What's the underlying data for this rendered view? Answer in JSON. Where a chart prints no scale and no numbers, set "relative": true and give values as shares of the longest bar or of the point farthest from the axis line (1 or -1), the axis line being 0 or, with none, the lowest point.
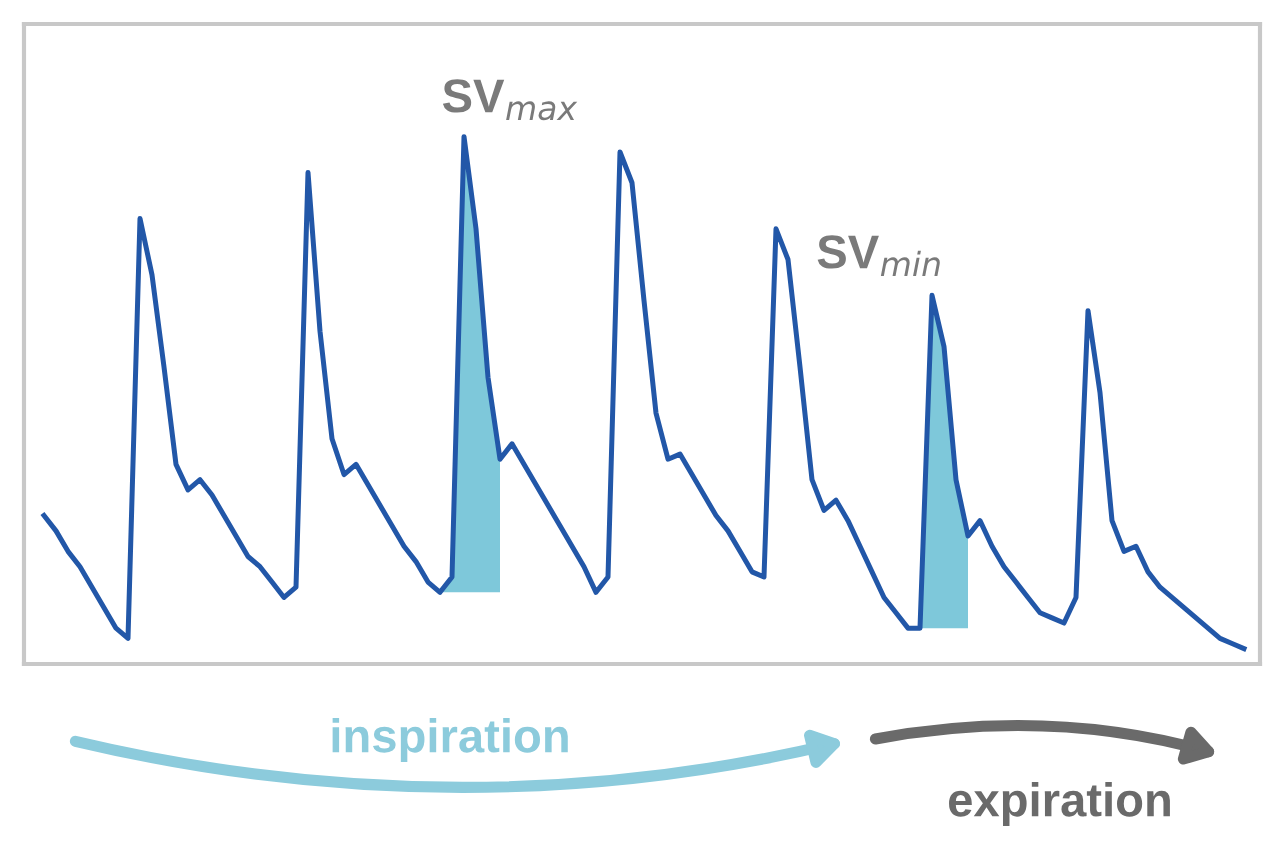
{
  "chart_data": {
    "type": "line",
    "relative": true,
    "color": "#2257a8",
    "categories": [
      null,
      null,
      null,
      null,
      null,
      null,
      null,
      null,
      null,
      null,
      null,
      null,
      null,
      null,
      null,
      null,
      null,
      null,
      null,
      null,
      null,
      null,
      null,
      null,
      null,
      null,
      null,
      null,
      null,
      null,
      null,
      null,
      null,
      null,
      null,
      null,
      null,
      null,
      null,
      null,
      null,
      null,
      null,
      null,
      null,
      null,
      null,
      null,
      null,
      null,
      null,
      null,
      null,
      null,
      null,
      null,
      null,
      null,
      null,
      null,
      null,
      null,
      null,
      null,
      null,
      null,
      null,
      null,
      null,
      null,
      null,
      null,
      null,
      null,
      null,
      null,
      null,
      null,
      null,
      null,
      null,
      null,
      null,
      null,
      null,
      null,
      null,
      null,
      null,
      null,
      null,
      null,
      null,
      null,
      null,
      null,
      null,
      null,
      null,
      null,
      null
    ],
    "values": [
      0.26,
      0.23,
      0.19,
      0.16,
      0.12,
      0.08,
      0.04,
      0.02,
      0.84,
      0.73,
      0.55,
      0.36,
      0.31,
      0.33,
      0.3,
      0.26,
      0.22,
      0.18,
      0.16,
      0.13,
      0.1,
      0.12,
      0.93,
      0.62,
      0.41,
      0.34,
      0.36,
      0.32,
      0.28,
      0.24,
      0.2,
      0.17,
      0.13,
      0.11,
      0.14,
      1.0,
      0.82,
      0.53,
      0.37,
      0.4,
      0.36,
      0.32,
      0.28,
      0.24,
      0.2,
      0.16,
      0.11,
      0.14,
      0.97,
      0.91,
      0.68,
      0.46,
      0.37,
      0.38,
      0.34,
      0.3,
      0.26,
      0.23,
      0.19,
      0.15,
      0.14,
      0.82,
      0.76,
      0.55,
      0.33,
      0.27,
      0.29,
      0.25,
      0.2,
      0.15,
      0.1,
      0.07,
      0.04,
      0.04,
      0.69,
      0.59,
      0.33,
      0.22,
      0.25,
      0.2,
      0.16,
      0.13,
      0.1,
      0.07,
      0.06,
      0.05,
      0.1,
      0.66,
      0.5,
      0.25,
      0.19,
      0.2,
      0.15,
      0.12,
      0.1,
      0.08,
      0.06,
      0.04,
      0.02,
      0.01,
      0.0
    ],
    "annotations": [
      "SV$_{max}$",
      "SV$_{min}$",
      "inspiration",
      "expiration"
    ]
  }
}
